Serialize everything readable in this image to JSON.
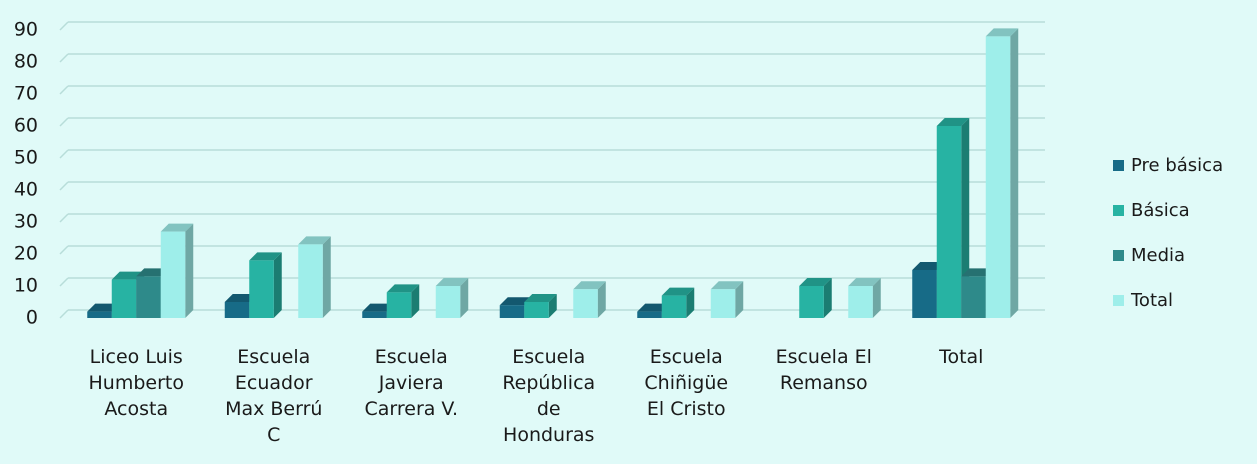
{
  "chart_data": {
    "type": "bar3d",
    "categories": [
      "Liceo Luis\nHumberto\nAcosta",
      "Escuela\nEcuador\nMax Berrú\nC",
      "Escuela\nJaviera\nCarrera V.",
      "Escuela\nRepública\nde\nHonduras",
      "Escuela\nChiñigüe\nEl Cristo",
      "Escuela El\nRemanso",
      "Total"
    ],
    "series": [
      {
        "name": "Pre básica",
        "color": "#176b87",
        "values": [
          2,
          5,
          2,
          4,
          2,
          null,
          15
        ]
      },
      {
        "name": "Básica",
        "color": "#27b3a3",
        "values": [
          12,
          18,
          8,
          5,
          7,
          10,
          60
        ]
      },
      {
        "name": "Media",
        "color": "#2e8a8a",
        "values": [
          13,
          null,
          null,
          null,
          null,
          null,
          13
        ]
      },
      {
        "name": "Total",
        "color": "#9eeeea",
        "values": [
          27,
          23,
          10,
          9,
          9,
          10,
          88
        ]
      }
    ],
    "ylim": [
      0,
      90
    ],
    "yticks": [
      0,
      10,
      20,
      30,
      40,
      50,
      60,
      70,
      80,
      90
    ],
    "grid": true,
    "legend": "right"
  }
}
